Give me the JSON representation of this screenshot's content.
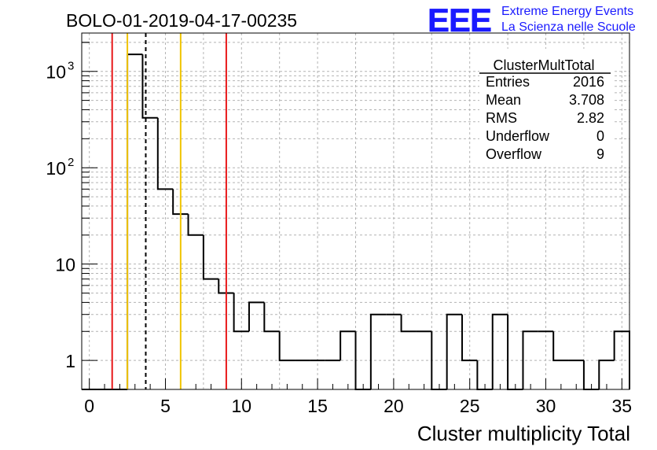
{
  "title": "BOLO-01-2019-04-17-00235",
  "logo": {
    "mark": "EEE",
    "line1": "Extreme Energy Events",
    "line2": "La Scienza nelle Scuole",
    "color": "#1a1aff"
  },
  "stats": {
    "name": "ClusterMultTotal",
    "rows": [
      {
        "label": "Entries",
        "value": "2016"
      },
      {
        "label": "Mean",
        "value": "3.708"
      },
      {
        "label": "RMS",
        "value": "2.82"
      },
      {
        "label": "Underflow",
        "value": "0"
      },
      {
        "label": "Overflow",
        "value": "9"
      }
    ]
  },
  "chart_data": {
    "type": "bar",
    "histogram": true,
    "title": "BOLO-01-2019-04-17-00235",
    "xlabel": "Cluster multiplicity Total",
    "ylabel": "",
    "xlim": [
      -0.5,
      35.5
    ],
    "ylim": [
      0.5,
      2500
    ],
    "yscale": "log",
    "grid": true,
    "legend": "top-right",
    "bin_width": 1,
    "x": [
      0,
      1,
      2,
      3,
      4,
      5,
      6,
      7,
      8,
      9,
      10,
      11,
      12,
      13,
      14,
      15,
      16,
      17,
      18,
      19,
      20,
      21,
      22,
      23,
      24,
      25,
      26,
      27,
      28,
      29,
      30,
      31,
      32,
      33,
      34,
      35
    ],
    "values": [
      0,
      0,
      0,
      1500,
      330,
      60,
      33,
      20,
      7,
      5,
      2,
      4,
      2,
      1,
      1,
      1,
      1,
      2,
      0,
      3,
      3,
      2,
      2,
      0,
      3,
      1,
      0,
      3,
      0,
      2,
      2,
      1,
      1,
      0,
      1,
      2
    ],
    "xticks": [
      0,
      5,
      10,
      15,
      20,
      25,
      30,
      35
    ],
    "yticks": [
      {
        "value": 1,
        "label": "1"
      },
      {
        "value": 10,
        "label": "10"
      },
      {
        "value": 100,
        "label": "10",
        "exp": "2"
      },
      {
        "value": 1000,
        "label": "10",
        "exp": "3"
      }
    ],
    "lines": [
      {
        "x": 1.5,
        "color": "#e8191b",
        "style": "solid",
        "name": "red-line-low"
      },
      {
        "x": 2.5,
        "color": "#f0c400",
        "style": "solid",
        "name": "yellow-line-low"
      },
      {
        "x": 3.708,
        "color": "#000000",
        "style": "dashed",
        "name": "mean-line"
      },
      {
        "x": 6.0,
        "color": "#f0c400",
        "style": "solid",
        "name": "yellow-line-high"
      },
      {
        "x": 9.0,
        "color": "#e8191b",
        "style": "solid",
        "name": "red-line-high"
      }
    ]
  }
}
